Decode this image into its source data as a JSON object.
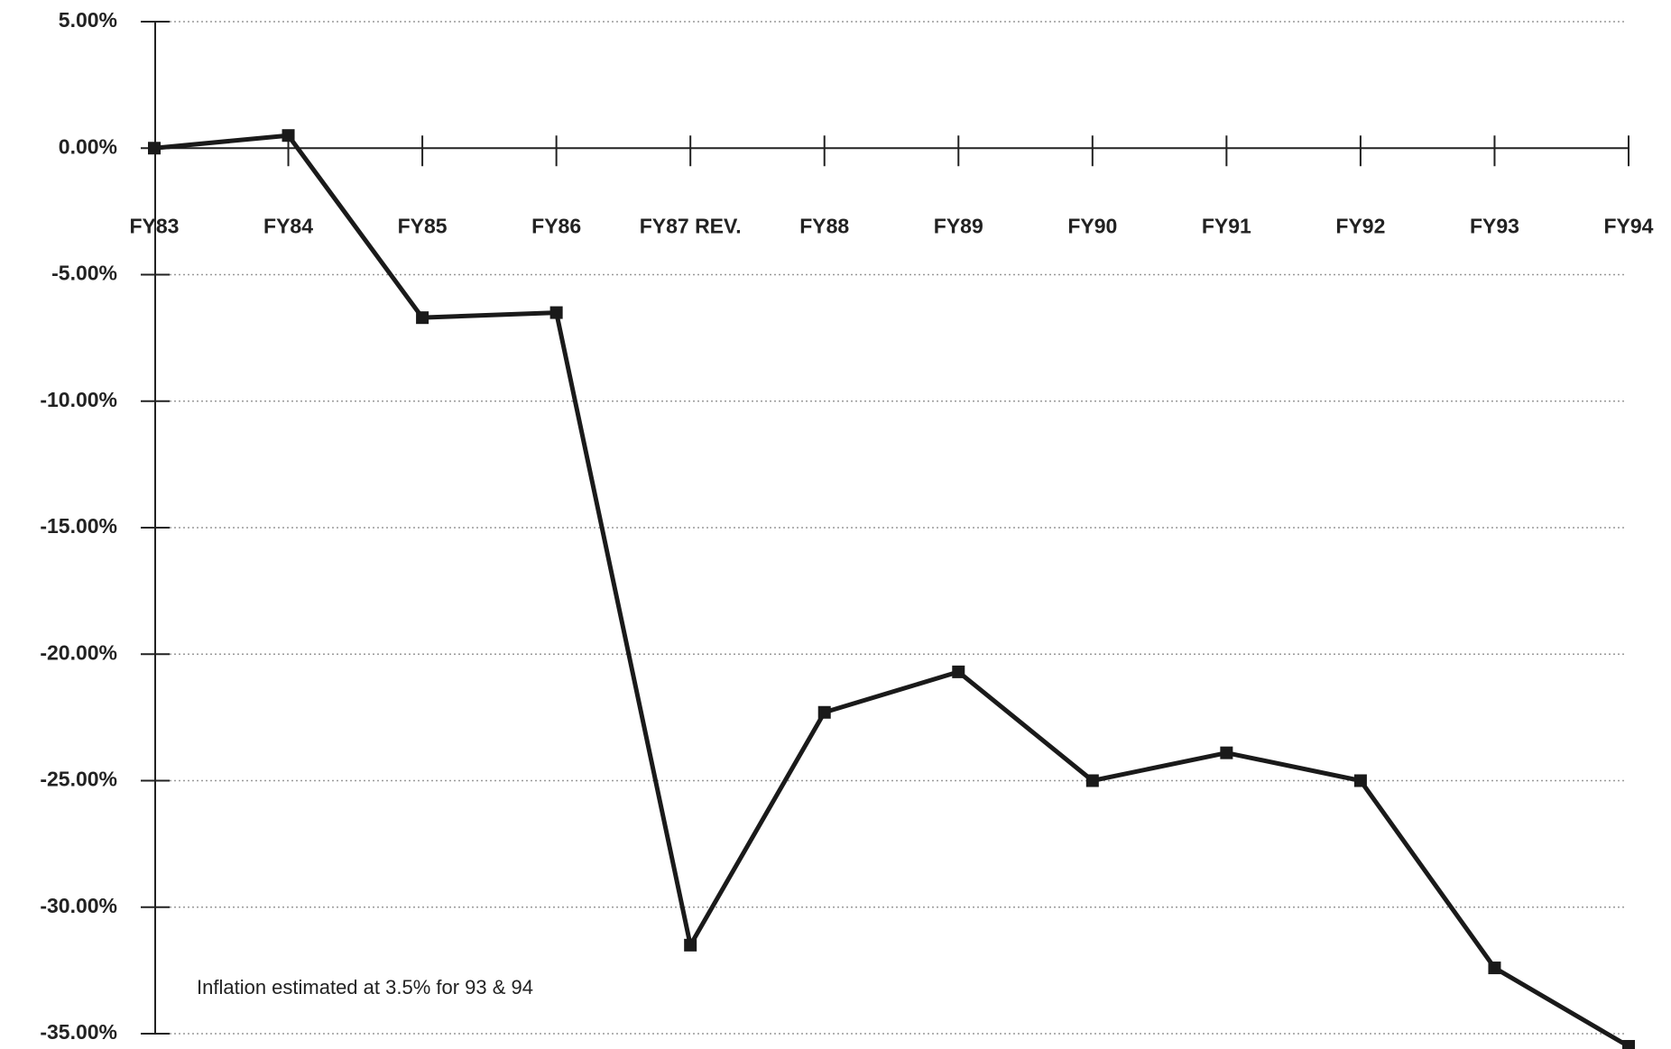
{
  "chart_data": {
    "type": "line",
    "categories": [
      "FY83",
      "FY84",
      "FY85",
      "FY86",
      "FY87 REV.",
      "FY88",
      "FY89",
      "FY90",
      "FY91",
      "FY92",
      "FY93",
      "FY94"
    ],
    "series": [
      {
        "name": null,
        "color": "#1a1a1a",
        "values": [
          0,
          0.5,
          -6.7,
          -6.5,
          -31.5,
          -22.3,
          -20.7,
          -25,
          -23.9,
          -25,
          -32.4,
          -35.5
        ]
      }
    ],
    "ylim": [
      -35,
      5
    ],
    "yticks": [
      {
        "value": 5,
        "label": "5.00%"
      },
      {
        "value": 0,
        "label": "0.00%"
      },
      {
        "value": -5,
        "label": "-5.00%"
      },
      {
        "value": -10,
        "label": "-10.00%"
      },
      {
        "value": -15,
        "label": "-15.00%"
      },
      {
        "value": -20,
        "label": "-20.00%"
      },
      {
        "value": -25,
        "label": "-25.00%"
      },
      {
        "value": -30,
        "label": "-30.00%"
      },
      {
        "value": -35,
        "label": "-35.00%"
      }
    ],
    "grid": true,
    "annotation": "Inflation estimated at 3.5% for 93 & 94"
  }
}
